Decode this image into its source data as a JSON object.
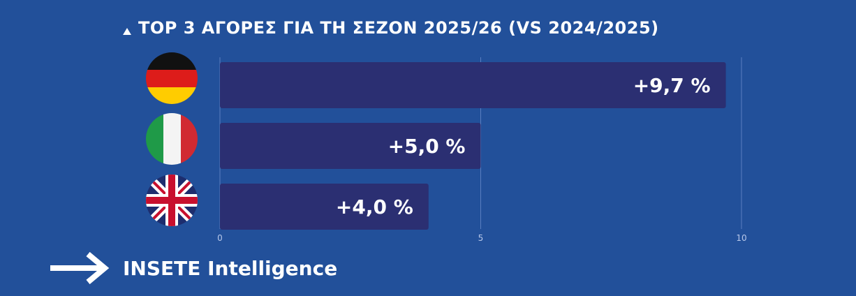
{
  "title": "TOP 3 ΑΓΟΡΕΣ ΓΙΑ ΤΗ ΣΕΖΟΝ 2025/26 (VS  2024/2025)",
  "footer": {
    "brand": "INSETE Intelligence"
  },
  "colors": {
    "background": "#22509a",
    "bar": "#2b2f72",
    "text": "#ffffff",
    "grid": "#5a7ec0"
  },
  "chart_data": {
    "type": "bar",
    "orientation": "horizontal",
    "categories": [
      "Germany",
      "Italy",
      "United Kingdom"
    ],
    "category_icons": [
      "flag-germany-icon",
      "flag-italy-icon",
      "flag-uk-icon"
    ],
    "values": [
      9.7,
      5.0,
      4.0
    ],
    "data_labels": [
      "+9,7 %",
      "+5,0 %",
      "+4,0 %"
    ],
    "xlim": [
      0,
      10
    ],
    "xticks": [
      0,
      5,
      10
    ],
    "xtick_labels": [
      "0",
      "5",
      "10"
    ],
    "grid": true
  }
}
